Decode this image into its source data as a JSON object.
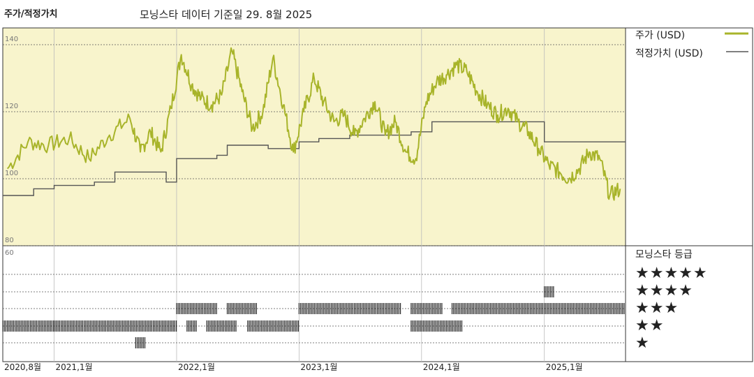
{
  "header": {
    "title": "주가/적정가치",
    "subtitle": "모닝스타 데이터 기준일 29. 8월 2025"
  },
  "legend": {
    "price_label": "주가 (USD)",
    "fair_label": "적정가치 (USD)",
    "rating_label": "모닝스타 등급"
  },
  "colors": {
    "price": "#a8b42a",
    "fair": "#555555",
    "panel_bg": "#f8f4cc",
    "bars": "#222222"
  },
  "rating_stars": [
    "★★★★★",
    "★★★★",
    "★★★",
    "★★",
    "★"
  ],
  "chart_data": {
    "type": "line",
    "title": "주가/적정가치",
    "ylim": [
      80,
      145
    ],
    "ytick_labels": [
      "140",
      "120",
      "100",
      "80",
      "60"
    ],
    "xtick_labels": [
      "2020,8월",
      "2021,1월",
      "2022,1월",
      "2023,1월",
      "2024,1월",
      "2025,1월"
    ],
    "x_range": [
      "2020-08",
      "2025-08"
    ],
    "series": [
      {
        "name": "주가 (USD)",
        "x": [
          "2020-08",
          "2020-10",
          "2020-12",
          "2021-02",
          "2021-04",
          "2021-06",
          "2021-08",
          "2021-09",
          "2021-10",
          "2021-11",
          "2021-12",
          "2022-01",
          "2022-02",
          "2022-03",
          "2022-04",
          "2022-05",
          "2022-06",
          "2022-07",
          "2022-08",
          "2022-09",
          "2022-10",
          "2022-11",
          "2022-12",
          "2023-01",
          "2023-02",
          "2023-03",
          "2023-04",
          "2023-05",
          "2023-06",
          "2023-07",
          "2023-08",
          "2023-09",
          "2023-10",
          "2023-11",
          "2023-12",
          "2024-01",
          "2024-02",
          "2024-03",
          "2024-04",
          "2024-05",
          "2024-06",
          "2024-07",
          "2024-08",
          "2024-09",
          "2024-10",
          "2024-11",
          "2024-12",
          "2025-01",
          "2025-02",
          "2025-03",
          "2025-04",
          "2025-05",
          "2025-06",
          "2025-07",
          "2025-08"
        ],
        "values": [
          103,
          111,
          110,
          112,
          106,
          113,
          118,
          108,
          114,
          108,
          121,
          137,
          128,
          124,
          122,
          125,
          138,
          126,
          115,
          120,
          136,
          122,
          108,
          120,
          130,
          123,
          117,
          119,
          113,
          118,
          123,
          113,
          117,
          108,
          106,
          123,
          129,
          131,
          134,
          132,
          126,
          122,
          119,
          121,
          117,
          114,
          109,
          104,
          102,
          100,
          103,
          108,
          106,
          95,
          97
        ]
      },
      {
        "name": "적정가치 (USD)",
        "x": [
          "2020-08",
          "2020-11",
          "2021-01",
          "2021-05",
          "2021-07",
          "2021-12",
          "2022-01",
          "2022-05",
          "2022-06",
          "2022-07",
          "2022-10",
          "2022-12",
          "2023-01",
          "2023-03",
          "2023-06",
          "2023-07",
          "2023-12",
          "2024-02",
          "2024-07",
          "2024-12",
          "2025-01",
          "2025-03",
          "2025-05",
          "2025-08"
        ],
        "values": [
          95,
          97,
          98,
          99,
          102,
          99,
          106,
          107,
          110,
          110,
          109,
          109,
          111,
          112,
          113,
          113,
          114,
          117,
          117,
          117,
          111,
          111,
          111,
          111
        ]
      }
    ],
    "ratings_rows": [
      5,
      4,
      3,
      2,
      1
    ],
    "rating_segments": [
      {
        "stars": 2,
        "from": "2020-08",
        "to": "2021-12"
      },
      {
        "stars": 1,
        "from": "2021-09",
        "to": "2021-09"
      },
      {
        "stars": 2,
        "from": "2022-02",
        "to": "2022-02"
      },
      {
        "stars": 3,
        "from": "2022-01",
        "to": "2022-04"
      },
      {
        "stars": 2,
        "from": "2022-04",
        "to": "2022-06"
      },
      {
        "stars": 3,
        "from": "2022-06",
        "to": "2022-08"
      },
      {
        "stars": 2,
        "from": "2022-08",
        "to": "2022-12"
      },
      {
        "stars": 3,
        "from": "2023-01",
        "to": "2023-10"
      },
      {
        "stars": 2,
        "from": "2023-12",
        "to": "2024-04"
      },
      {
        "stars": 3,
        "from": "2023-12",
        "to": "2024-02"
      },
      {
        "stars": 3,
        "from": "2024-04",
        "to": "2025-08"
      },
      {
        "stars": 4,
        "from": "2025-01",
        "to": "2025-01"
      }
    ]
  }
}
